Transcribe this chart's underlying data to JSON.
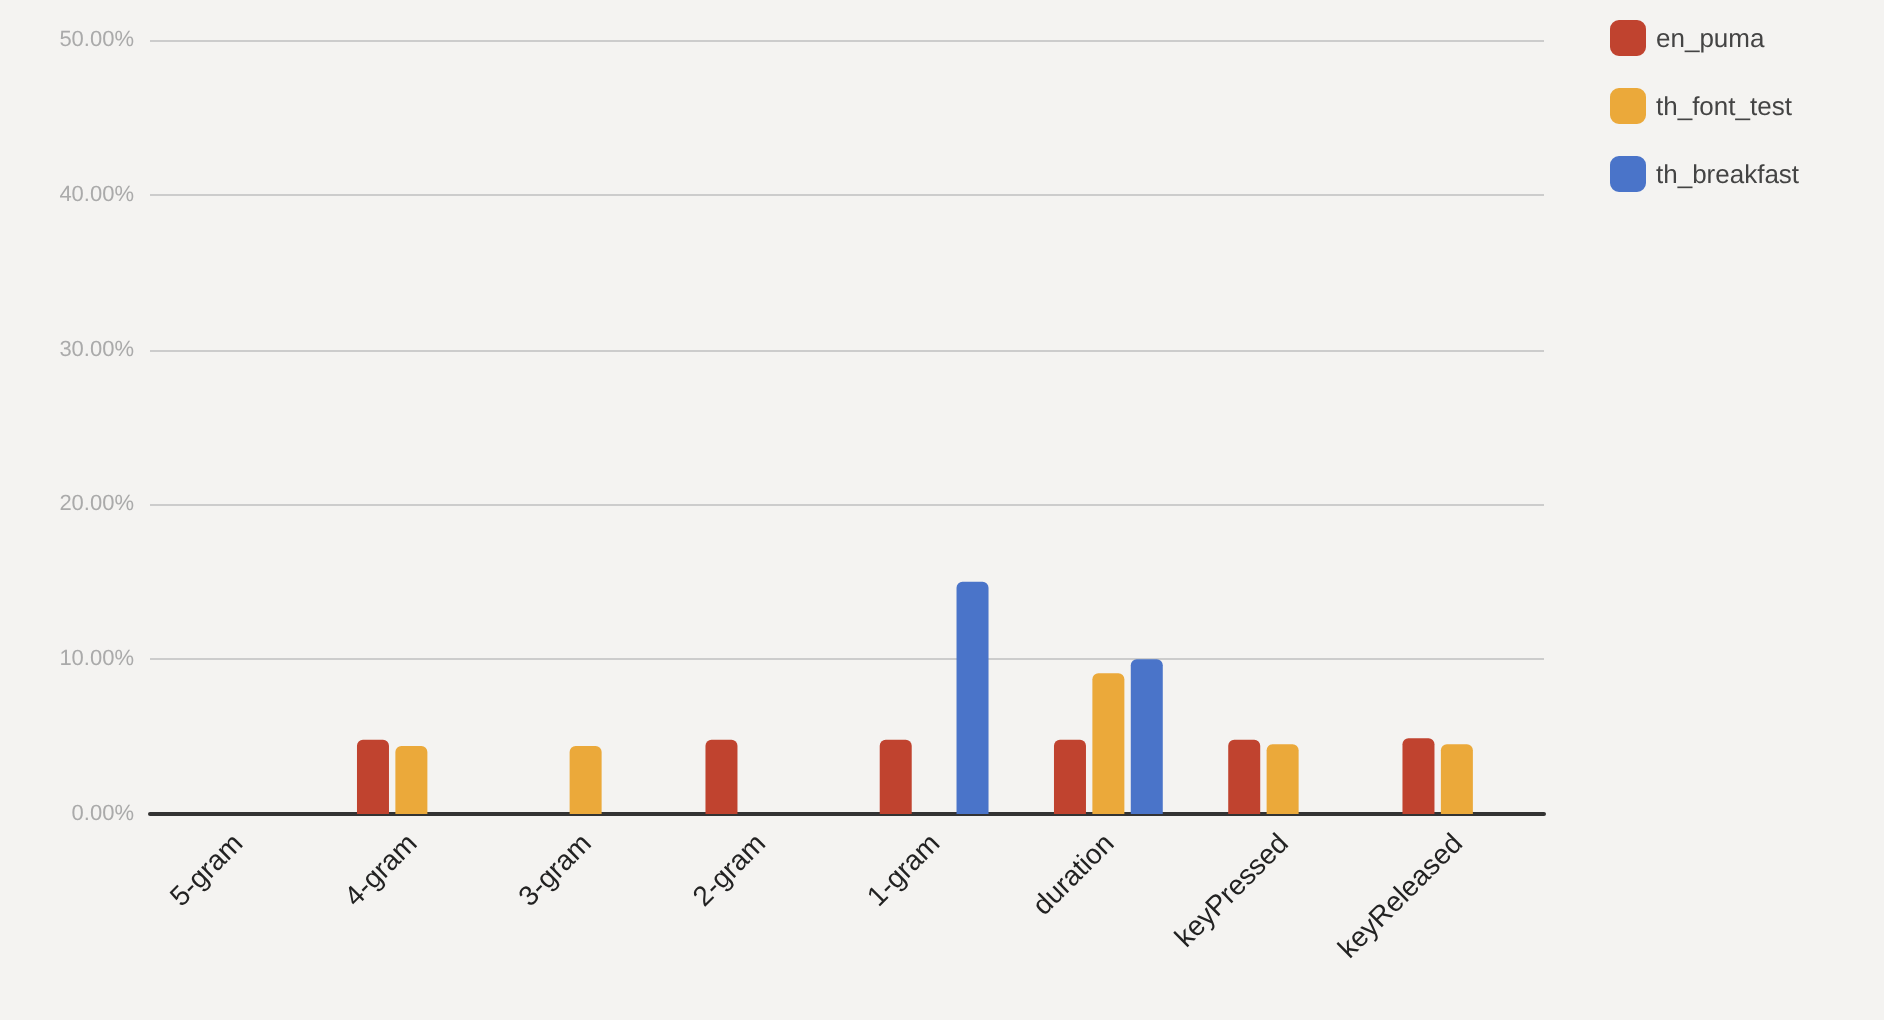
{
  "chart_data": {
    "type": "bar",
    "categories": [
      "5-gram",
      "4-gram",
      "3-gram",
      "2-gram",
      "1-gram",
      "duration",
      "keyPressed",
      "keyReleased"
    ],
    "series": [
      {
        "name": "en_puma",
        "color": "#c0432f",
        "values": [
          null,
          4.8,
          null,
          4.8,
          4.8,
          4.8,
          4.8,
          4.9
        ]
      },
      {
        "name": "th_font_test",
        "color": "#eba93a",
        "values": [
          null,
          4.4,
          4.4,
          null,
          null,
          9.1,
          4.5,
          4.5
        ]
      },
      {
        "name": "th_breakfast",
        "color": "#4a74c9",
        "values": [
          null,
          null,
          null,
          null,
          15.0,
          10.0,
          null,
          null
        ]
      }
    ],
    "ylim": [
      0,
      50
    ],
    "yticks": [
      {
        "value": 0,
        "label": "0.00%"
      },
      {
        "value": 10,
        "label": "10.00%"
      },
      {
        "value": 20,
        "label": "20.00%"
      },
      {
        "value": 30,
        "label": "30.00%"
      },
      {
        "value": 40,
        "label": "40.00%"
      },
      {
        "value": 50,
        "label": "50.00%"
      }
    ],
    "grid": "y",
    "legend": "top right"
  }
}
